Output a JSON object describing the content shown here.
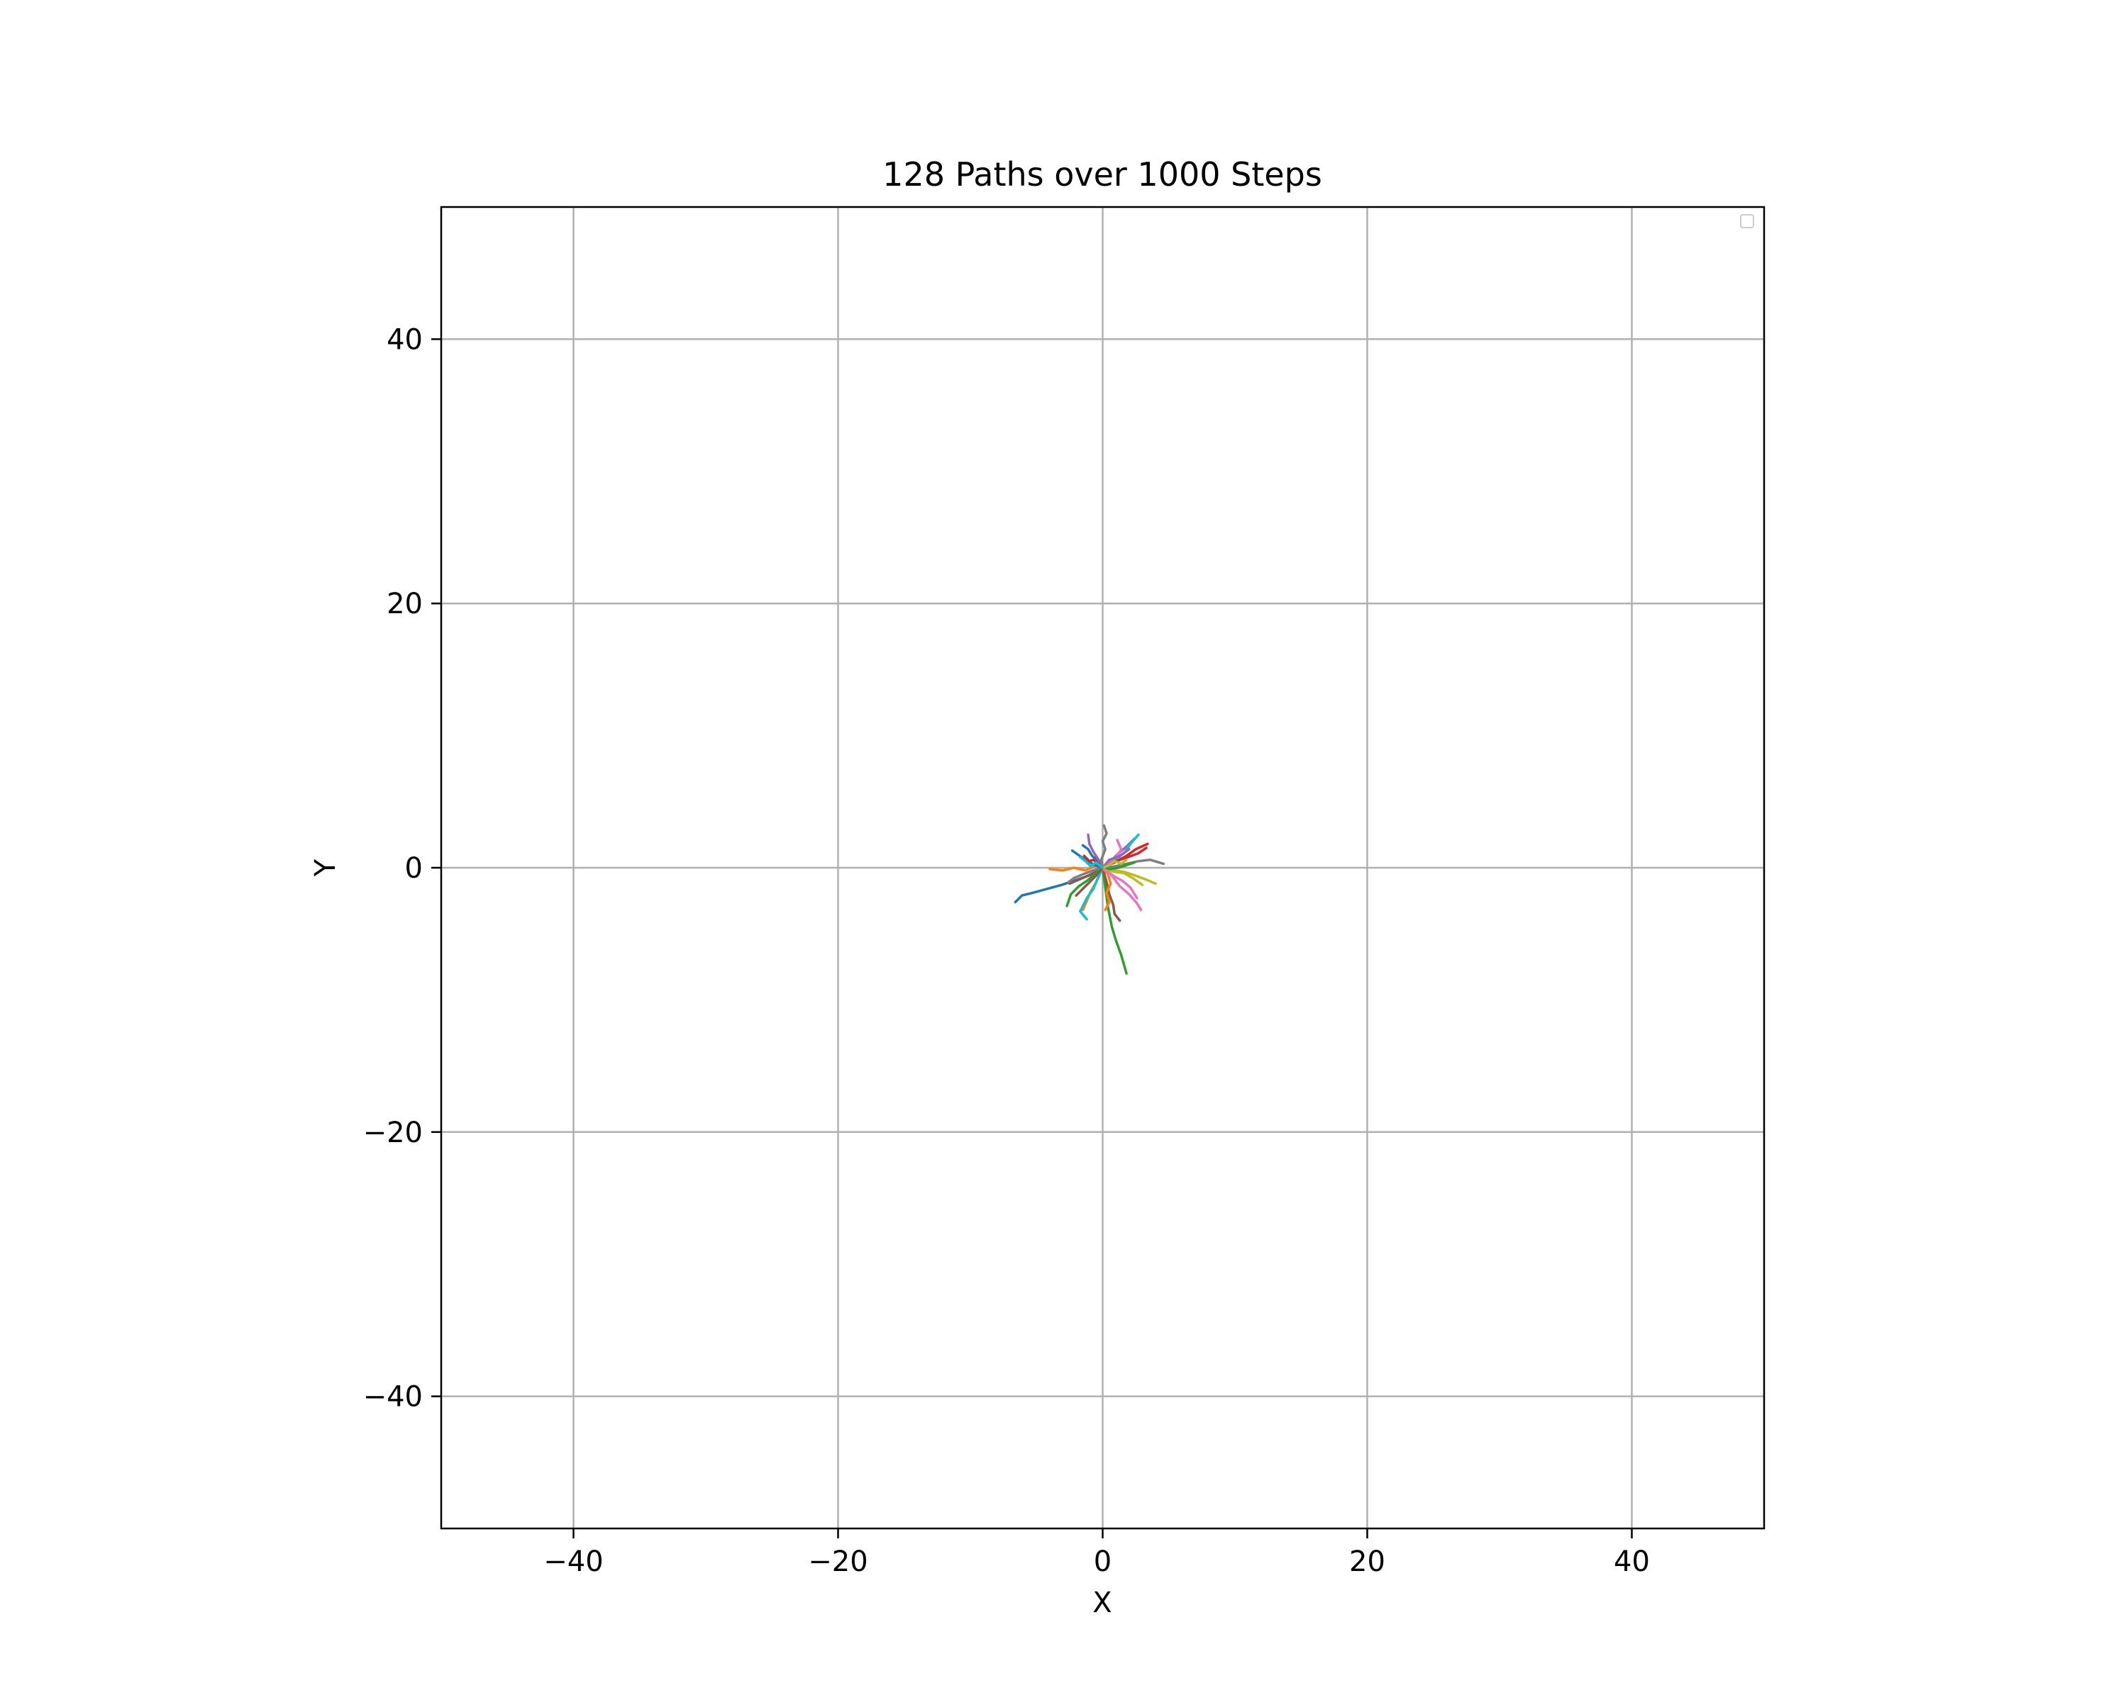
{
  "chart_data": {
    "type": "line",
    "title": "128 Paths over 1000 Steps",
    "xlabel": "X",
    "ylabel": "Y",
    "xlim": [
      -50,
      50
    ],
    "ylim": [
      -50,
      50
    ],
    "xticks": [
      -40,
      -20,
      0,
      20,
      40
    ],
    "yticks": [
      -40,
      -20,
      0,
      20,
      40
    ],
    "xtick_labels": [
      "−40",
      "−20",
      "0",
      "20",
      "40"
    ],
    "ytick_labels": [
      "−40",
      "−20",
      "0",
      "20",
      "40"
    ],
    "grid": true,
    "legend": {
      "placement": "upper right",
      "entries": []
    },
    "colors": [
      "#1f77b4",
      "#ff7f0e",
      "#2ca02c",
      "#d62728",
      "#9467bd",
      "#8c564b",
      "#e377c2",
      "#7f7f7f",
      "#bcbd22",
      "#17becf"
    ],
    "series": [
      {
        "x": [
          0,
          -0.8,
          -1.9,
          -3.1,
          -4.2,
          -5.3,
          -6.1,
          -6.6
        ],
        "y": [
          0,
          -0.5,
          -0.9,
          -1.3,
          -1.6,
          -1.9,
          -2.1,
          -2.6
        ]
      },
      {
        "x": [
          0,
          -0.6,
          -1.3,
          -2.2,
          -3.0,
          -4.0
        ],
        "y": [
          0,
          0.1,
          -0.2,
          0.0,
          -0.2,
          -0.1
        ]
      },
      {
        "x": [
          0,
          0.2,
          0.4,
          0.7,
          1.0,
          1.4,
          1.8
        ],
        "y": [
          0,
          -1.5,
          -3.0,
          -4.5,
          -5.5,
          -6.6,
          -8.0
        ]
      },
      {
        "x": [
          0,
          0.9,
          1.8,
          2.5,
          3.4
        ],
        "y": [
          0,
          0.4,
          0.9,
          1.4,
          1.8
        ]
      },
      {
        "x": [
          0,
          0.6,
          1.2,
          1.8,
          2.4
        ],
        "y": [
          0,
          0.5,
          1.1,
          1.6,
          2.2
        ]
      },
      {
        "x": [
          0,
          -0.5,
          -1.1,
          -1.8,
          -2.5
        ],
        "y": [
          0,
          -0.3,
          -0.6,
          -0.9,
          -1.2
        ]
      },
      {
        "x": [
          0,
          0.7,
          1.3,
          2.0,
          2.6,
          2.9
        ],
        "y": [
          0,
          -0.6,
          -1.4,
          -2.0,
          -2.7,
          -3.2
        ]
      },
      {
        "x": [
          0,
          0.9,
          1.8,
          2.7,
          3.6,
          4.6
        ],
        "y": [
          0,
          0.1,
          0.3,
          0.5,
          0.6,
          0.3
        ]
      },
      {
        "x": [
          0,
          0.8,
          1.6,
          2.5,
          3.3,
          4.0
        ],
        "y": [
          0,
          -0.2,
          -0.3,
          -0.6,
          -0.9,
          -1.2
        ]
      },
      {
        "x": [
          0,
          0.5,
          1.1,
          1.7,
          2.1,
          2.7
        ],
        "y": [
          0,
          0.3,
          0.7,
          1.2,
          1.8,
          2.5
        ]
      },
      {
        "x": [
          0,
          -0.3,
          -0.8,
          -1.1,
          -1.5
        ],
        "y": [
          0,
          0.5,
          0.9,
          1.4,
          1.7
        ]
      },
      {
        "x": [
          0,
          -0.2,
          -0.5,
          -0.9,
          -1.2,
          -1.5
        ],
        "y": [
          0,
          -0.4,
          -1.1,
          -1.8,
          -2.5,
          -3.2
        ]
      },
      {
        "x": [
          0,
          -0.6,
          -1.2,
          -1.8,
          -2.4,
          -2.7
        ],
        "y": [
          0,
          -0.5,
          -1.0,
          -1.4,
          -2.0,
          -2.9
        ]
      },
      {
        "x": [
          0,
          0.6,
          1.3,
          1.9,
          2.7,
          3.3
        ],
        "y": [
          0,
          0.3,
          0.6,
          0.8,
          1.1,
          1.5
        ]
      },
      {
        "x": [
          0,
          -0.3,
          -0.7,
          -1.0,
          -1.1
        ],
        "y": [
          0,
          0.6,
          1.2,
          1.8,
          2.5
        ]
      },
      {
        "x": [
          0,
          0.3,
          0.5,
          0.8,
          0.9,
          1.3
        ],
        "y": [
          0,
          -1.1,
          -2.0,
          -2.8,
          -3.5,
          -4.0
        ]
      },
      {
        "x": [
          0,
          0.6,
          1.1,
          1.4,
          1.1
        ],
        "y": [
          0,
          0.4,
          0.9,
          1.4,
          2.1
        ]
      },
      {
        "x": [
          0,
          -0.7,
          -1.5,
          -2.2,
          -2.6
        ],
        "y": [
          0,
          -0.2,
          -0.5,
          -0.8,
          -1.1
        ]
      },
      {
        "x": [
          0,
          0.8,
          1.6,
          2.3,
          3.0
        ],
        "y": [
          0,
          -0.3,
          -0.4,
          -0.8,
          -1.3
        ]
      },
      {
        "x": [
          0,
          -0.4,
          -0.7,
          -1.2,
          -1.7,
          -1.2
        ],
        "y": [
          0,
          -0.9,
          -1.6,
          -2.3,
          -3.3,
          -3.9
        ]
      },
      {
        "x": [
          0,
          -0.6,
          -1.1,
          -1.6,
          -2.3
        ],
        "y": [
          0,
          0.2,
          0.5,
          0.8,
          1.3
        ]
      },
      {
        "x": [
          0,
          0.4,
          0.6,
          0.3,
          0.5,
          0.2
        ],
        "y": [
          0,
          -0.5,
          -1.2,
          -1.9,
          -2.6,
          -3.2
        ]
      },
      {
        "x": [
          0,
          0.6,
          1.2,
          1.8,
          2.4
        ],
        "y": [
          0,
          -0.1,
          0.0,
          0.2,
          0.4
        ]
      },
      {
        "x": [
          0,
          -0.3,
          -0.7,
          -1.0,
          -1.4
        ],
        "y": [
          0,
          0.3,
          0.6,
          0.5,
          0.9
        ]
      },
      {
        "x": [
          0,
          0.5,
          1.1,
          1.6,
          2.0
        ],
        "y": [
          0,
          0.6,
          0.8,
          1.1,
          1.4
        ]
      },
      {
        "x": [
          0,
          -0.5,
          -1.1,
          -1.5,
          -2.0
        ],
        "y": [
          0,
          -0.6,
          -1.2,
          -1.6,
          -2.1
        ]
      },
      {
        "x": [
          0,
          0.8,
          1.5,
          2.1,
          2.6
        ],
        "y": [
          0,
          -0.6,
          -1.0,
          -1.5,
          -2.3
        ]
      },
      {
        "x": [
          0,
          -0.1,
          0.2,
          0.0,
          0.3,
          0.1
        ],
        "y": [
          0,
          0.6,
          1.4,
          2.0,
          2.6,
          3.2
        ]
      },
      {
        "x": [
          0,
          0.5,
          0.9,
          1.4,
          1.8
        ],
        "y": [
          0,
          0.2,
          0.5,
          0.3,
          0.6
        ]
      },
      {
        "x": [
          0,
          -0.5,
          -0.9,
          -1.3,
          -1.7
        ],
        "y": [
          0,
          0.4,
          0.1,
          0.5,
          0.8
        ]
      }
    ]
  }
}
